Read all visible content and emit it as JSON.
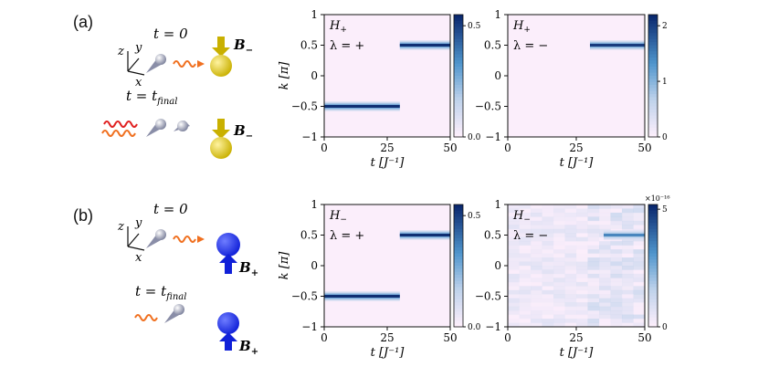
{
  "panels": [
    {
      "label": "(a)",
      "illustration": {
        "axes": {
          "z": "z",
          "y": "y",
          "x": "x"
        },
        "t_initial": "t = 0",
        "t_final_prefix": "t = t",
        "t_final_sub": "final",
        "field_label": "B",
        "field_sub": "−",
        "field_color": "#e3c93a"
      }
    },
    {
      "label": "(b)",
      "illustration": {
        "axes": {
          "z": "z",
          "y": "y",
          "x": "x"
        },
        "t_initial": "t = 0",
        "t_final_prefix": "t = t",
        "t_final_sub": "final",
        "field_label": "B",
        "field_sub": "+",
        "field_color": "#2a3cf0"
      }
    }
  ],
  "chart_data": [
    {
      "type": "heatmap",
      "panel": "a",
      "position": "left",
      "annotation_H": "H",
      "annotation_H_sub": "+",
      "annotation_lambda": "λ = +",
      "xlabel": "t [J⁻¹]",
      "ylabel": "k [π]",
      "xlim": [
        0,
        50
      ],
      "ylim": [
        -1,
        1
      ],
      "xticks": [
        "0",
        "25",
        "50"
      ],
      "yticks": [
        "1",
        "0.5",
        "0",
        "−0.5",
        "−1"
      ],
      "colorbar": {
        "min": 0,
        "max": 0.55,
        "ticks": [
          "0.5",
          "0.0"
        ],
        "exponent": ""
      },
      "bands": [
        {
          "k": -0.5,
          "t_start": 0,
          "t_end": 30,
          "intensity": 0.55
        },
        {
          "k": 0.5,
          "t_start": 30,
          "t_end": 50,
          "intensity": 0.55
        }
      ]
    },
    {
      "type": "heatmap",
      "panel": "a",
      "position": "right",
      "annotation_H": "H",
      "annotation_H_sub": "+",
      "annotation_lambda": "λ = −",
      "xlabel": "t [J⁻¹]",
      "ylabel": "",
      "xlim": [
        0,
        50
      ],
      "ylim": [
        -1,
        1
      ],
      "xticks": [
        "0",
        "25",
        "50"
      ],
      "yticks": [
        "1",
        "0.5",
        "0",
        "−0.5",
        "−1"
      ],
      "colorbar": {
        "min": 0,
        "max": 2.2,
        "ticks": [
          "2",
          "1",
          "0"
        ],
        "exponent": ""
      },
      "bands": [
        {
          "k": 0.5,
          "t_start": 30,
          "t_end": 50,
          "intensity": 2.1
        }
      ]
    },
    {
      "type": "heatmap",
      "panel": "b",
      "position": "left",
      "annotation_H": "H",
      "annotation_H_sub": "−",
      "annotation_lambda": "λ = +",
      "xlabel": "t [J⁻¹]",
      "ylabel": "k [π]",
      "xlim": [
        0,
        50
      ],
      "ylim": [
        -1,
        1
      ],
      "xticks": [
        "0",
        "25",
        "50"
      ],
      "yticks": [
        "1",
        "0.5",
        "0",
        "−0.5",
        "−1"
      ],
      "colorbar": {
        "min": 0,
        "max": 0.55,
        "ticks": [
          "0.5",
          "0.0"
        ],
        "exponent": ""
      },
      "bands": [
        {
          "k": -0.5,
          "t_start": 0,
          "t_end": 30,
          "intensity": 0.55
        },
        {
          "k": 0.5,
          "t_start": 30,
          "t_end": 50,
          "intensity": 0.55
        }
      ]
    },
    {
      "type": "heatmap",
      "panel": "b",
      "position": "right",
      "annotation_H": "H",
      "annotation_H_sub": "−",
      "annotation_lambda": "λ = −",
      "xlabel": "t [J⁻¹]",
      "ylabel": "",
      "xlim": [
        0,
        50
      ],
      "ylim": [
        -1,
        1
      ],
      "xticks": [
        "0",
        "25",
        "50"
      ],
      "yticks": [
        "1",
        "0.5",
        "0",
        "−0.5",
        "−1"
      ],
      "colorbar": {
        "min": 0,
        "max": 5.2,
        "ticks": [
          "5",
          "0"
        ],
        "exponent": "×10⁻¹⁶"
      },
      "bands": [
        {
          "k": 0.5,
          "t_start": 35,
          "t_end": 50,
          "intensity": 3.5
        }
      ],
      "noise": true
    }
  ]
}
